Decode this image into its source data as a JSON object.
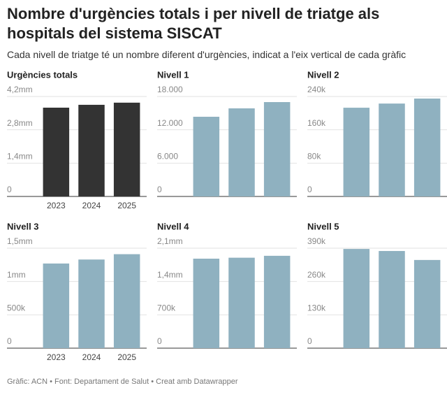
{
  "title": "Nombre d'urgències totals i per nivell de triatge als hospitals del sistema SISCAT",
  "subtitle": "Cada nivell de triatge té un nombre diferent d'urgències, indicat a l'eix vertical de cada gràfic",
  "source": "Gràfic: ACN • Font: Departament de Salut • Creat amb Datawrapper",
  "chart_data": [
    {
      "type": "bar",
      "title": "Urgències totals",
      "categories": [
        "2023",
        "2024",
        "2025"
      ],
      "values": [
        3730000,
        3850000,
        3940000
      ],
      "color": "#333333",
      "ylim": [
        0,
        4200000
      ],
      "yticks": [
        0,
        {
          "value": 1400000,
          "label": "1,4mm"
        },
        {
          "value": 2800000,
          "label": "2,8mm"
        },
        {
          "value": 4200000,
          "label": "4,2mm"
        }
      ],
      "grid": true
    },
    {
      "type": "bar",
      "title": "Nivell 1",
      "categories": [
        null,
        null,
        null
      ],
      "values": [
        14350,
        15860,
        16990
      ],
      "color": "#8fb1c0",
      "ylim": [
        0,
        18000
      ],
      "yticks": [
        0,
        {
          "value": 6000,
          "label": "6.000"
        },
        {
          "value": 12000,
          "label": "12.000"
        },
        {
          "value": 18000,
          "label": "18.000"
        }
      ],
      "grid": true
    },
    {
      "type": "bar",
      "title": "Nivell 2",
      "categories": [
        null,
        null,
        null
      ],
      "values": [
        213000,
        223000,
        235000
      ],
      "color": "#8fb1c0",
      "ylim": [
        0,
        240000
      ],
      "yticks": [
        0,
        {
          "value": 80000,
          "label": "80k"
        },
        {
          "value": 160000,
          "label": "160k"
        },
        {
          "value": 240000,
          "label": "240k"
        }
      ],
      "grid": true
    },
    {
      "type": "bar",
      "title": "Nivell 3",
      "categories": [
        "2023",
        "2024",
        "2025"
      ],
      "values": [
        1270000,
        1330000,
        1410000
      ],
      "color": "#8fb1c0",
      "ylim": [
        0,
        1500000
      ],
      "yticks": [
        0,
        {
          "value": 500000,
          "label": "500k"
        },
        {
          "value": 1000000,
          "label": "1mm"
        },
        {
          "value": 1500000,
          "label": "1,5mm"
        }
      ],
      "grid": true
    },
    {
      "type": "bar",
      "title": "Nivell 4",
      "categories": [
        null,
        null,
        null
      ],
      "values": [
        1880000,
        1900000,
        1940000
      ],
      "color": "#8fb1c0",
      "ylim": [
        0,
        2100000
      ],
      "yticks": [
        0,
        {
          "value": 700000,
          "label": "700k"
        },
        {
          "value": 1400000,
          "label": "1,4mm"
        },
        {
          "value": 2100000,
          "label": "2,1mm"
        }
      ],
      "grid": true
    },
    {
      "type": "bar",
      "title": "Nivell 5",
      "categories": [
        null,
        null,
        null
      ],
      "values": [
        387000,
        379000,
        344000
      ],
      "color": "#8fb1c0",
      "ylim": [
        0,
        390000
      ],
      "yticks": [
        0,
        {
          "value": 130000,
          "label": "130k"
        },
        {
          "value": 260000,
          "label": "260k"
        },
        {
          "value": 390000,
          "label": "390k"
        }
      ],
      "grid": true
    }
  ]
}
